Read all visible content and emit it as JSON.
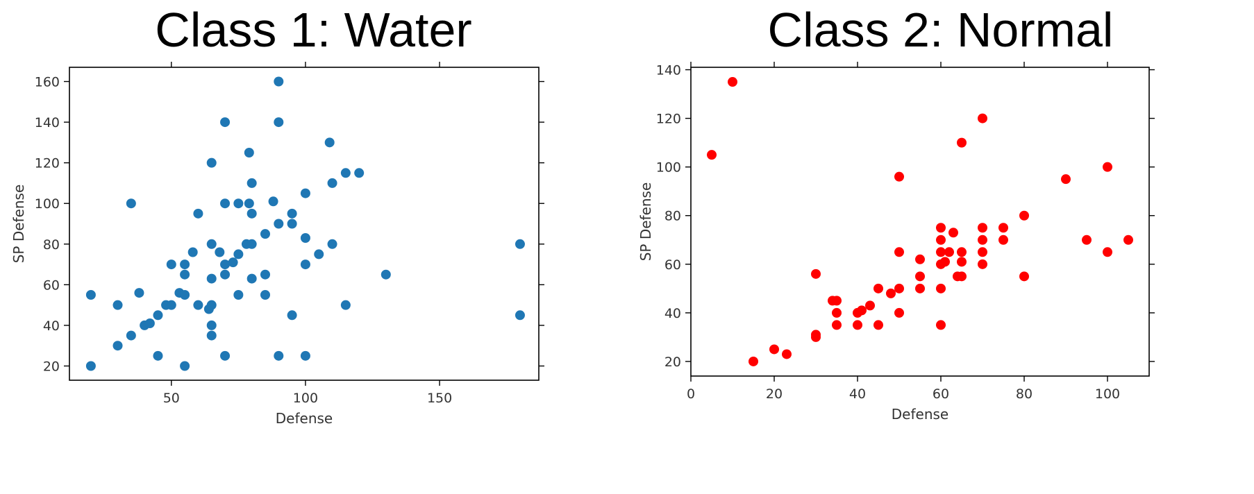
{
  "chart_data": [
    {
      "type": "scatter",
      "title": "Class 1: Water",
      "xlabel": "Defense",
      "ylabel": "SP Defense",
      "xlim": [
        12,
        187
      ],
      "ylim": [
        13,
        167
      ],
      "xticks": [
        50,
        100,
        150
      ],
      "yticks": [
        20,
        40,
        60,
        80,
        100,
        120,
        140,
        160
      ],
      "grid": false,
      "color": "#1f77b4",
      "points": [
        [
          20,
          20
        ],
        [
          20,
          55
        ],
        [
          30,
          50
        ],
        [
          30,
          30
        ],
        [
          35,
          35
        ],
        [
          35,
          100
        ],
        [
          38,
          56
        ],
        [
          40,
          40
        ],
        [
          42,
          41
        ],
        [
          45,
          45
        ],
        [
          45,
          25
        ],
        [
          48,
          50
        ],
        [
          50,
          50
        ],
        [
          50,
          70
        ],
        [
          53,
          56
        ],
        [
          55,
          20
        ],
        [
          55,
          55
        ],
        [
          55,
          65
        ],
        [
          55,
          70
        ],
        [
          58,
          76
        ],
        [
          60,
          50
        ],
        [
          60,
          95
        ],
        [
          64,
          48
        ],
        [
          65,
          50
        ],
        [
          65,
          40
        ],
        [
          65,
          35
        ],
        [
          65,
          63
        ],
        [
          65,
          80
        ],
        [
          65,
          120
        ],
        [
          68,
          76
        ],
        [
          70,
          25
        ],
        [
          70,
          65
        ],
        [
          70,
          70
        ],
        [
          70,
          100
        ],
        [
          70,
          140
        ],
        [
          73,
          71
        ],
        [
          75,
          55
        ],
        [
          75,
          75
        ],
        [
          75,
          100
        ],
        [
          78,
          80
        ],
        [
          79,
          100
        ],
        [
          79,
          125
        ],
        [
          80,
          63
        ],
        [
          80,
          80
        ],
        [
          80,
          95
        ],
        [
          80,
          110
        ],
        [
          85,
          55
        ],
        [
          85,
          65
        ],
        [
          85,
          85
        ],
        [
          88,
          101
        ],
        [
          90,
          25
        ],
        [
          90,
          90
        ],
        [
          90,
          140
        ],
        [
          90,
          160
        ],
        [
          95,
          45
        ],
        [
          95,
          90
        ],
        [
          95,
          95
        ],
        [
          100,
          25
        ],
        [
          100,
          70
        ],
        [
          100,
          83
        ],
        [
          100,
          105
        ],
        [
          105,
          75
        ],
        [
          109,
          130
        ],
        [
          110,
          80
        ],
        [
          110,
          110
        ],
        [
          115,
          50
        ],
        [
          115,
          115
        ],
        [
          120,
          115
        ],
        [
          130,
          65
        ],
        [
          180,
          80
        ],
        [
          180,
          45
        ]
      ]
    },
    {
      "type": "scatter",
      "title": "Class 2: Normal",
      "xlabel": "Defense",
      "ylabel": "SP Defense",
      "xlim": [
        0,
        110
      ],
      "ylim": [
        14,
        141
      ],
      "xticks": [
        0,
        20,
        40,
        60,
        80,
        100
      ],
      "yticks": [
        20,
        40,
        60,
        80,
        100,
        120,
        140
      ],
      "grid": false,
      "color": "#ff0000",
      "points": [
        [
          5,
          105
        ],
        [
          10,
          135
        ],
        [
          15,
          20
        ],
        [
          20,
          25
        ],
        [
          23,
          23
        ],
        [
          30,
          30
        ],
        [
          30,
          31
        ],
        [
          30,
          56
        ],
        [
          34,
          45
        ],
        [
          35,
          45
        ],
        [
          35,
          40
        ],
        [
          35,
          35
        ],
        [
          40,
          35
        ],
        [
          40,
          40
        ],
        [
          41,
          41
        ],
        [
          43,
          43
        ],
        [
          45,
          50
        ],
        [
          45,
          35
        ],
        [
          48,
          48
        ],
        [
          50,
          96
        ],
        [
          50,
          65
        ],
        [
          50,
          50
        ],
        [
          50,
          40
        ],
        [
          55,
          62
        ],
        [
          55,
          55
        ],
        [
          55,
          50
        ],
        [
          60,
          75
        ],
        [
          60,
          70
        ],
        [
          60,
          65
        ],
        [
          60,
          60
        ],
        [
          60,
          50
        ],
        [
          60,
          35
        ],
        [
          61,
          61
        ],
        [
          62,
          65
        ],
        [
          63,
          73
        ],
        [
          64,
          55
        ],
        [
          65,
          65
        ],
        [
          65,
          61
        ],
        [
          65,
          55
        ],
        [
          65,
          110
        ],
        [
          70,
          120
        ],
        [
          70,
          75
        ],
        [
          70,
          70
        ],
        [
          70,
          65
        ],
        [
          70,
          60
        ],
        [
          75,
          75
        ],
        [
          75,
          70
        ],
        [
          80,
          80
        ],
        [
          80,
          55
        ],
        [
          90,
          95
        ],
        [
          95,
          70
        ],
        [
          100,
          100
        ],
        [
          100,
          65
        ],
        [
          105,
          70
        ]
      ]
    }
  ]
}
